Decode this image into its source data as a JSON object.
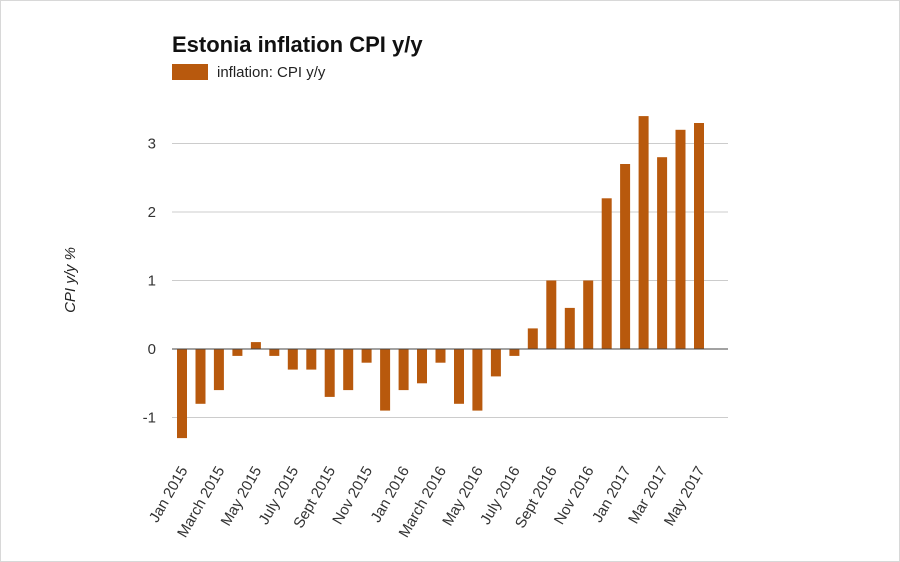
{
  "chart_data": {
    "type": "bar",
    "title": "Estonia inflation CPI y/y",
    "ylabel": "CPI y/y %",
    "xlabel": "",
    "legend": {
      "placement": "top-left",
      "entries": [
        "inflation: CPI y/y"
      ]
    },
    "color": "#b8590d",
    "ylim": [
      -1.5,
      3.5
    ],
    "yticks": [
      -1,
      0,
      1,
      2,
      3
    ],
    "grid": true,
    "categories": [
      "Jan 2015",
      "Feb 2015",
      "March 2015",
      "Apr 2015",
      "May 2015",
      "June 2015",
      "July 2015",
      "Aug 2015",
      "Sept 2015",
      "Oct 2015",
      "Nov 2015",
      "Dec 2015",
      "Jan 2016",
      "Feb 2016",
      "March 2016",
      "Apr 2016",
      "May 2016",
      "June 2016",
      "July 2016",
      "Aug 2016",
      "Sept 2016",
      "Oct 2016",
      "Nov 2016",
      "Dec 2016",
      "Jan 2017",
      "Feb 2017",
      "Mar 2017",
      "Apr 2017",
      "May 2017"
    ],
    "xticklabels": [
      "Jan 2015",
      "March 2015",
      "May 2015",
      "July 2015",
      "Sept 2015",
      "Nov 2015",
      "Jan 2016",
      "March 2016",
      "May 2016",
      "July 2016",
      "Sept 2016",
      "Nov 2016",
      "Jan 2017",
      "Mar 2017",
      "May 2017"
    ],
    "series": [
      {
        "name": "inflation: CPI y/y",
        "values": [
          -1.3,
          -0.8,
          -0.6,
          -0.1,
          0.1,
          -0.1,
          -0.3,
          -0.3,
          -0.7,
          -0.6,
          -0.2,
          -0.9,
          -0.6,
          -0.5,
          -0.2,
          -0.8,
          -0.9,
          -0.4,
          -0.1,
          0.3,
          1.0,
          0.6,
          1.0,
          2.2,
          2.7,
          3.4,
          2.8,
          3.2,
          3.3
        ]
      }
    ]
  }
}
